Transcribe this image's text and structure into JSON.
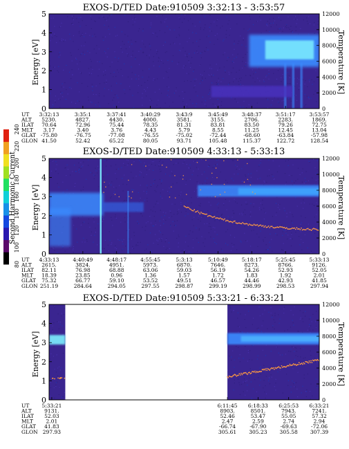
{
  "chart_data": [
    {
      "type": "heatmap",
      "title": "EXOS-D/TED   Date:910509  3:32:13 - 3:53:57",
      "ylabel": "Energy [eV]",
      "y2label": "Temperature [K]",
      "ylim": [
        0,
        5
      ],
      "y2lim": [
        0,
        12000
      ],
      "yticks": [
        "0",
        "1",
        "2",
        "3",
        "4",
        "5"
      ],
      "y2ticks": [
        "0",
        "2000",
        "4000",
        "6000",
        "8000",
        "10000",
        "12000"
      ],
      "row_labels": [
        "UT",
        "ALT",
        "ILAT",
        "MLT",
        "GLAT",
        "GLON"
      ],
      "columns": [
        [
          "3:32:13",
          "5230.",
          "70.64",
          "3.17",
          "-75.80",
          "41.50"
        ],
        [
          "3:35:1",
          "4827.",
          "72.96",
          "3.40",
          "-76.75",
          "52.42"
        ],
        [
          "3:37:41",
          "4430.",
          "75.44",
          "3.76",
          "-77.08",
          "65.22"
        ],
        [
          "3:40:29",
          "4000.",
          "78.35",
          "4.43",
          "-76.55",
          "80.05"
        ],
        [
          "3:43:9",
          "3581.",
          "81.31",
          "5.79",
          "-75.02",
          "93.71"
        ],
        [
          "3:45:49",
          "3155.",
          "83.81",
          "8.55",
          "-72.44",
          "105.48"
        ],
        [
          "3:48:37",
          "2706.",
          "83.50",
          "11.25",
          "-68.60",
          "115.37"
        ],
        [
          "3:51:17",
          "2283.",
          "79.26",
          "12.45",
          "-63.84",
          "122.72"
        ],
        [
          "3:53:57",
          "1869.",
          "72.75",
          "13.04",
          "-57.98",
          "128.54"
        ]
      ],
      "features": {
        "temperature_trace": false,
        "gaps": []
      }
    },
    {
      "type": "heatmap",
      "title": "EXOS-D/TED   Date:910509  4:33:13 - 5:33:13",
      "ylabel": "Energy [eV]",
      "y2label": "Temperature [K]",
      "ylim": [
        0,
        5
      ],
      "y2lim": [
        0,
        12000
      ],
      "yticks": [
        "0",
        "1",
        "2",
        "3",
        "4",
        "5"
      ],
      "y2ticks": [
        "0",
        "2000",
        "4000",
        "6000",
        "8000",
        "10000",
        "12000"
      ],
      "row_labels": [
        "UT",
        "ALT",
        "ILAT",
        "MLT",
        "GLAT",
        "GLON"
      ],
      "columns": [
        [
          "4:33:13",
          "2615.",
          "82.11",
          "18.39",
          "75.32",
          "251.19"
        ],
        [
          "4:40:49",
          "3824.",
          "76.98",
          "23.85",
          "66.77",
          "284.64"
        ],
        [
          "4:48:17",
          "4951.",
          "68.88",
          "0.96",
          "59.10",
          "294.05"
        ],
        [
          "4:55:45",
          "5973.",
          "63.06",
          "1.36",
          "53.52",
          "297.55"
        ],
        [
          "5:3:13",
          "6870.",
          "59.03",
          "1.57",
          "49.51",
          "298.87"
        ],
        [
          "5:10:49",
          "7646.",
          "56.19",
          "1.72",
          "46.57",
          "299.19"
        ],
        [
          "5:18:17",
          "8273.",
          "54.26",
          "1.83",
          "44.46",
          "298.99"
        ],
        [
          "5:25:45",
          "8766.",
          "52.93",
          "1.92",
          "42.93",
          "298.53"
        ],
        [
          "5:33:13",
          "9126.",
          "52.05",
          "2.01",
          "41.85",
          "297.94"
        ]
      ],
      "features": {
        "temperature_trace": true,
        "gaps": []
      }
    },
    {
      "type": "heatmap",
      "title": "EXOS-D/TED   Date:910509  5:33:21 - 6:33:21",
      "ylabel": "Energy [eV]",
      "y2label": "Temperature [K]",
      "ylim": [
        0,
        5
      ],
      "y2lim": [
        0,
        12000
      ],
      "yticks": [
        "0",
        "1",
        "2",
        "3",
        "4",
        "5"
      ],
      "y2ticks": [
        "0",
        "2000",
        "4000",
        "6000",
        "8000",
        "10000",
        "12000"
      ],
      "row_labels": [
        "UT",
        "ALT",
        "ILAT",
        "MLT",
        "GLAT",
        "GLON"
      ],
      "columns": [
        [
          "5:33:21",
          "9131.",
          "52.03",
          "2.01",
          "41.83",
          "297.93"
        ],
        [
          "6:11:45",
          "8903.",
          "52.46",
          "2.47",
          "-66.74",
          "305.61"
        ],
        [
          "6:18:33",
          "8501.",
          "53.47",
          "2.59",
          "-67.90",
          "305.23"
        ],
        [
          "6:25:53",
          "7943.",
          "55.05",
          "2.74",
          "-69.63",
          "305.58"
        ],
        [
          "6:33:21",
          "7241.",
          "57.32",
          "2.94",
          "-72.06",
          "307.39"
        ]
      ],
      "features": {
        "temperature_trace": true,
        "gaps": [
          [
            0.06,
            0.66
          ]
        ]
      }
    }
  ],
  "colorbar": {
    "label": "Second Harmonic Current",
    "ticks": [
      "80",
      "100",
      "120",
      "140",
      "160",
      "180",
      "200",
      "220",
      "240"
    ],
    "colors": [
      "#000000",
      "#5a0a6a",
      "#2a18b0",
      "#1448e0",
      "#1890e8",
      "#10d0d8",
      "#20e060",
      "#a0e020",
      "#f0e020",
      "#f0a020",
      "#e02010"
    ]
  },
  "colors": {
    "background": "#3a2590",
    "band": "#3a8cff",
    "band_core": "#7ef0ff",
    "trace": "#ff9a40"
  }
}
